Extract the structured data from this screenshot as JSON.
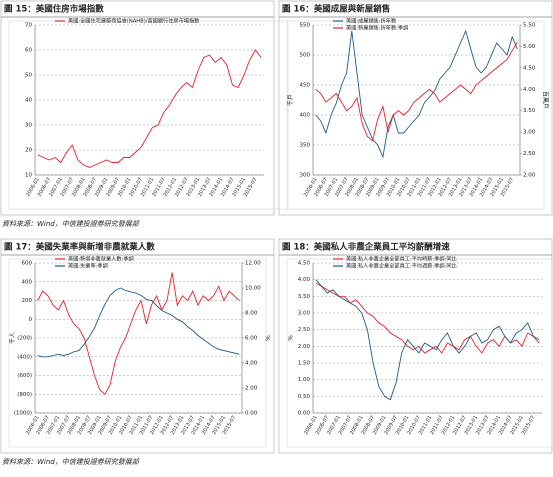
{
  "chart_data": [
    {
      "type": "line",
      "title": "圖 15：美國住房市場指數",
      "categories": [
        "2006-01",
        null,
        "2006-07",
        null,
        "2007-01",
        null,
        "2007-07",
        null,
        "2008-01",
        null,
        "2008-07",
        null,
        "2009-01",
        null,
        "2009-07",
        null,
        "2010-01",
        null,
        "2010-07",
        null,
        "2011-01",
        null,
        "2011-07",
        null,
        "2012-01",
        null,
        "2012-07",
        null,
        "2013-01",
        null,
        "2013-07",
        null,
        "2014-01",
        null,
        "2014-07",
        null,
        "2015-01",
        null,
        "2015-07",
        null
      ],
      "series": [
        {
          "name": "美國:全國住宅建築商協會(NAHB)/富國銀行住房市場指數",
          "color": "#e8212b",
          "values": [
            18,
            17,
            16,
            17,
            15,
            19,
            22,
            16,
            14,
            13,
            14,
            15,
            16,
            15,
            15,
            17,
            17,
            19,
            21,
            25,
            29,
            30,
            35,
            38,
            42,
            45,
            47,
            45,
            52,
            57,
            58,
            55,
            57,
            54,
            46,
            45,
            50,
            56,
            60,
            57
          ]
        }
      ],
      "ylim": [
        10,
        70
      ],
      "yticks": [
        10,
        20,
        30,
        40,
        50,
        60,
        70
      ]
    },
    {
      "type": "line",
      "title": "圖 16：美國成屋與新屋銷售",
      "categories": [
        "2006-01",
        null,
        "2006-07",
        null,
        "2007-01",
        null,
        "2007-07",
        null,
        "2008-01",
        null,
        "2008-07",
        null,
        "2009-01",
        null,
        "2009-07",
        null,
        "2010-01",
        null,
        "2010-07",
        null,
        "2011-01",
        null,
        "2011-07",
        null,
        "2012-01",
        null,
        "2012-07",
        null,
        "2013-01",
        null,
        "2013-07",
        null,
        "2014-01",
        null,
        "2014-07",
        null,
        "2015-01",
        null,
        "2015-07",
        null
      ],
      "series": [
        {
          "name": "美國:成屋銷售:折年數",
          "color": "#1f5b8e",
          "values": [
            400,
            390,
            370,
            400,
            420,
            450,
            470,
            540,
            470,
            400,
            380,
            360,
            350,
            330,
            380,
            400,
            370,
            370,
            380,
            390,
            400,
            420,
            430,
            440,
            460,
            470,
            480,
            500,
            520,
            540,
            510,
            480,
            470,
            480,
            500,
            520,
            510,
            500,
            530,
            510
          ]
        },
        {
          "name": "美國:新屋銷售:折年數:季調",
          "color": "#e8212b",
          "axis": "y2",
          "values": [
            4.0,
            3.9,
            3.7,
            3.8,
            3.9,
            3.7,
            3.5,
            3.6,
            3.8,
            3.2,
            2.9,
            2.8,
            3.3,
            3.6,
            3.0,
            3.4,
            3.5,
            3.4,
            3.5,
            3.7,
            3.8,
            3.9,
            4.0,
            3.9,
            3.7,
            3.8,
            3.9,
            4.0,
            4.1,
            4.0,
            3.9,
            4.1,
            4.2,
            4.3,
            4.4,
            4.5,
            4.6,
            4.7,
            4.9,
            5.1
          ]
        }
      ],
      "ylim": [
        300,
        550
      ],
      "yticks": [
        300,
        350,
        400,
        450,
        500,
        550
      ],
      "y2lim": [
        2,
        5.5
      ],
      "y2ticks": [
        {
          "value": 2,
          "label": "2.00"
        },
        {
          "value": 2.5,
          "label": "2.50"
        },
        {
          "value": 3,
          "label": "3.00"
        },
        {
          "value": 3.5,
          "label": "3.50"
        },
        {
          "value": 4,
          "label": "4.00"
        },
        {
          "value": 4.5,
          "label": "4.50"
        },
        {
          "value": 5,
          "label": "5.00"
        },
        {
          "value": 5.5,
          "label": "5.50"
        }
      ],
      "y_label": "千戶",
      "y2_label": "百萬戶"
    },
    {
      "type": "line",
      "title": "圖 17：美國失業率與新增非農就業人數",
      "categories": [
        "2006-01",
        null,
        "2006-07",
        null,
        "2007-01",
        null,
        "2007-07",
        null,
        "2008-01",
        null,
        "2008-07",
        null,
        "2009-01",
        null,
        "2009-07",
        null,
        "2010-01",
        null,
        "2010-07",
        null,
        "2011-01",
        null,
        "2011-07",
        null,
        "2012-01",
        null,
        "2012-07",
        null,
        "2013-01",
        null,
        "2013-07",
        null,
        "2014-01",
        null,
        "2014-07",
        null,
        "2015-01",
        null,
        "2015-07",
        null
      ],
      "series": [
        {
          "name": "美國:新增非農就業人數:季調",
          "color": "#e8212b",
          "values": [
            200,
            300,
            250,
            150,
            100,
            200,
            50,
            -50,
            -100,
            -200,
            -400,
            -600,
            -750,
            -800,
            -700,
            -450,
            -300,
            -200,
            -50,
            100,
            200,
            -50,
            150,
            250,
            100,
            200,
            500,
            150,
            250,
            200,
            300,
            150,
            250,
            200,
            250,
            350,
            200,
            300,
            250,
            200
          ]
        },
        {
          "name": "美國:失業率:季調",
          "color": "#1f5b8e",
          "axis": "y2",
          "values": [
            4.6,
            4.5,
            4.5,
            4.6,
            4.7,
            4.6,
            4.7,
            4.9,
            5.0,
            5.5,
            6.1,
            6.8,
            7.8,
            8.7,
            9.4,
            9.8,
            10.0,
            9.8,
            9.7,
            9.6,
            9.4,
            9.1,
            9.0,
            8.6,
            8.2,
            8.0,
            7.8,
            7.5,
            7.3,
            6.9,
            6.6,
            6.2,
            5.9,
            5.6,
            5.3,
            5.1,
            5.0,
            4.9,
            4.8,
            4.7
          ]
        }
      ],
      "ylim": [
        -1000,
        600
      ],
      "yticks": [
        {
          "value": -1000,
          "label": "(1000)"
        },
        {
          "value": -800,
          "label": "(800)"
        },
        {
          "value": -600,
          "label": "(600)"
        },
        {
          "value": -400,
          "label": "(400)"
        },
        {
          "value": -200,
          "label": "(200)"
        },
        0,
        200,
        400,
        600
      ],
      "y2lim": [
        0,
        12
      ],
      "y2ticks": [
        {
          "value": 0,
          "label": "0.00"
        },
        {
          "value": 2,
          "label": "2.00"
        },
        {
          "value": 4,
          "label": "4.00"
        },
        {
          "value": 6,
          "label": "6.00"
        },
        {
          "value": 8,
          "label": "8.00"
        },
        {
          "value": 10,
          "label": "10.00"
        },
        {
          "value": 12,
          "label": "12.00"
        }
      ],
      "y_label": "千人",
      "y2_label": "%"
    },
    {
      "type": "line",
      "title": "圖 18：美國私人非農企業員工平均薪酬增速",
      "categories": [
        "2006-01",
        null,
        "2006-07",
        null,
        "2007-01",
        null,
        "2007-07",
        null,
        "2008-01",
        null,
        "2008-07",
        null,
        "2009-01",
        null,
        "2009-07",
        null,
        "2010-01",
        null,
        "2010-07",
        null,
        "2011-01",
        null,
        "2011-07",
        null,
        "2012-01",
        null,
        "2012-07",
        null,
        "2013-01",
        null,
        "2013-07",
        null,
        "2014-01",
        null,
        "2014-07",
        null,
        "2015-01",
        null,
        "2015-07",
        null
      ],
      "series": [
        {
          "name": "美國:私人非農企業全部員工:平均時薪:季調:同比",
          "color": "#e8212b",
          "values": [
            3.9,
            3.8,
            3.7,
            3.6,
            3.5,
            3.5,
            3.3,
            3.4,
            3.2,
            3.0,
            2.9,
            2.7,
            2.6,
            2.4,
            2.3,
            2.2,
            2.0,
            1.9,
            2.0,
            1.8,
            1.9,
            2.0,
            1.8,
            2.1,
            2.0,
            1.9,
            2.2,
            2.3,
            2.0,
            1.8,
            2.1,
            2.2,
            2.0,
            2.3,
            2.1,
            2.2,
            2.0,
            2.4,
            2.3,
            2.1
          ]
        },
        {
          "name": "美國:私人非農企業全部員工:平均週薪:季調:同比",
          "color": "#1f5b8e",
          "values": [
            4.0,
            3.8,
            3.6,
            3.7,
            3.5,
            3.4,
            3.3,
            3.2,
            3.0,
            2.5,
            1.5,
            0.8,
            0.5,
            0.4,
            0.9,
            1.8,
            2.2,
            2.0,
            1.8,
            2.1,
            2.0,
            1.9,
            2.2,
            2.4,
            2.0,
            1.8,
            2.0,
            2.3,
            2.4,
            2.1,
            2.2,
            2.5,
            2.6,
            2.3,
            2.1,
            2.4,
            2.5,
            2.7,
            2.3,
            2.2
          ]
        }
      ],
      "ylim": [
        0,
        4.5
      ],
      "yticks": [
        {
          "value": 0,
          "label": "0.00"
        },
        {
          "value": 0.5,
          "label": "0.50"
        },
        {
          "value": 1,
          "label": "1.00"
        },
        {
          "value": 1.5,
          "label": "1.50"
        },
        {
          "value": 2,
          "label": "2.00"
        },
        {
          "value": 2.5,
          "label": "2.50"
        },
        {
          "value": 3,
          "label": "3.00"
        },
        {
          "value": 3.5,
          "label": "3.50"
        },
        {
          "value": 4,
          "label": "4.00"
        },
        {
          "value": 4.5,
          "label": "4.50"
        }
      ],
      "y_label": "%"
    }
  ],
  "sources": [
    "資料來源：Wind，中信建投證券研究發展部",
    "資料來源：Wind，中信建投證券研究發展部"
  ]
}
